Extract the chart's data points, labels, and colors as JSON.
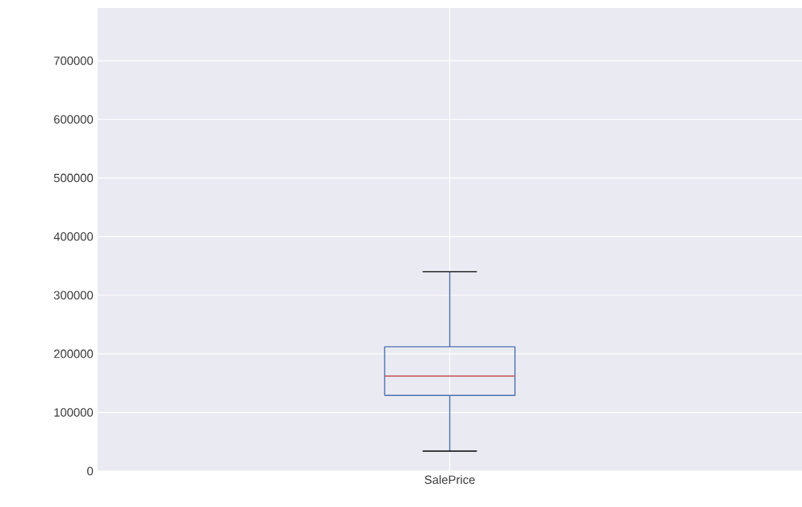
{
  "chart_data": {
    "type": "box",
    "categories": [
      "SalePrice"
    ],
    "series": [
      {
        "color": "#4c72b0",
        "boxes": [
          {
            "low": 34000,
            "q1": 129000,
            "median": 162000,
            "q3": 212000,
            "high": 340000
          }
        ]
      }
    ],
    "ylim": [
      0,
      790000
    ],
    "yticks": [
      0,
      100000,
      200000,
      300000,
      400000,
      500000,
      600000,
      700000
    ],
    "grid": true
  }
}
